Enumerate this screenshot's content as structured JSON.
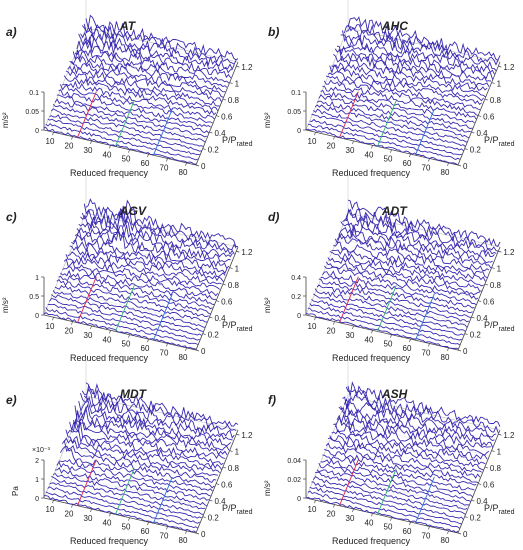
{
  "figure": {
    "x_axis_label": "Reduced frequency",
    "y_axis_label_html": "P/P",
    "y_axis_label_sub": "rated",
    "line_color": "#3a2bb0",
    "harmonic_colors": [
      "#e0224a",
      "#2fb56a",
      "#2f6fd9"
    ]
  },
  "chart_data": [
    {
      "id": "a",
      "panel_letter": "a)",
      "title": "AT",
      "type": "waterfall",
      "zlabel": "m/s²",
      "z_ticks": [
        "0",
        "0.05",
        "0.1"
      ],
      "x_ticks": [
        "10",
        "20",
        "30",
        "40",
        "50",
        "60",
        "70",
        "80"
      ],
      "y_ticks": [
        "0",
        "0.2",
        "0.4",
        "0.6",
        "0.8",
        "1",
        "1.2"
      ],
      "n_traces": 24,
      "x_range": [
        5,
        85
      ],
      "y_range": [
        0,
        1.25
      ],
      "z_range": [
        0,
        0.1
      ]
    },
    {
      "id": "b",
      "panel_letter": "b)",
      "title": "AHC",
      "type": "waterfall",
      "zlabel": "m/s²",
      "z_ticks": [
        "0",
        "0.05",
        "0.1"
      ],
      "x_ticks": [
        "10",
        "20",
        "30",
        "40",
        "50",
        "60",
        "70",
        "80"
      ],
      "y_ticks": [
        "0",
        "0.2",
        "0.4",
        "0.6",
        "0.8",
        "1",
        "1.2"
      ],
      "n_traces": 24,
      "x_range": [
        5,
        85
      ],
      "y_range": [
        0,
        1.25
      ],
      "z_range": [
        0,
        0.1
      ]
    },
    {
      "id": "c",
      "panel_letter": "c)",
      "title": "AGV",
      "type": "waterfall",
      "zlabel": "m/s²",
      "z_ticks": [
        "0",
        "0.5",
        "1"
      ],
      "x_ticks": [
        "10",
        "20",
        "30",
        "40",
        "50",
        "60",
        "70",
        "80"
      ],
      "y_ticks": [
        "0",
        "0.2",
        "0.4",
        "0.6",
        "0.8",
        "1",
        "1.2"
      ],
      "n_traces": 24,
      "x_range": [
        5,
        85
      ],
      "y_range": [
        0,
        1.25
      ],
      "z_range": [
        0,
        1
      ]
    },
    {
      "id": "d",
      "panel_letter": "d)",
      "title": "ADT",
      "type": "waterfall",
      "zlabel": "m/s²",
      "z_ticks": [
        "0",
        "0.2",
        "0.4"
      ],
      "x_ticks": [
        "10",
        "20",
        "30",
        "40",
        "50",
        "60",
        "70",
        "80"
      ],
      "y_ticks": [
        "0",
        "0.2",
        "0.4",
        "0.6",
        "0.8",
        "1",
        "1.2"
      ],
      "n_traces": 24,
      "x_range": [
        5,
        85
      ],
      "y_range": [
        0,
        1.25
      ],
      "z_range": [
        0,
        0.4
      ]
    },
    {
      "id": "e",
      "panel_letter": "e)",
      "title": "MDT",
      "type": "waterfall",
      "zlabel": "Pa",
      "z_exponent": "×10⁻³",
      "z_ticks": [
        "0",
        "1",
        "2"
      ],
      "x_ticks": [
        "10",
        "20",
        "30",
        "40",
        "50",
        "60",
        "70",
        "80"
      ],
      "y_ticks": [
        "0",
        "0.2",
        "0.4",
        "0.6",
        "0.8",
        "1",
        "1.2"
      ],
      "n_traces": 24,
      "x_range": [
        5,
        85
      ],
      "y_range": [
        0,
        1.25
      ],
      "z_range": [
        0,
        0.002
      ]
    },
    {
      "id": "f",
      "panel_letter": "f)",
      "title": "ASH",
      "type": "waterfall",
      "zlabel": "m/s²",
      "z_ticks": [
        "0",
        "0.02",
        "0.04"
      ],
      "x_ticks": [
        "10",
        "20",
        "30",
        "40",
        "50",
        "60",
        "70",
        "80"
      ],
      "y_ticks": [
        "0",
        "0.2",
        "0.4",
        "0.6",
        "0.8",
        "1",
        "1.2"
      ],
      "n_traces": 24,
      "x_range": [
        5,
        85
      ],
      "y_range": [
        0,
        1.25
      ],
      "z_range": [
        0,
        0.04
      ]
    }
  ]
}
